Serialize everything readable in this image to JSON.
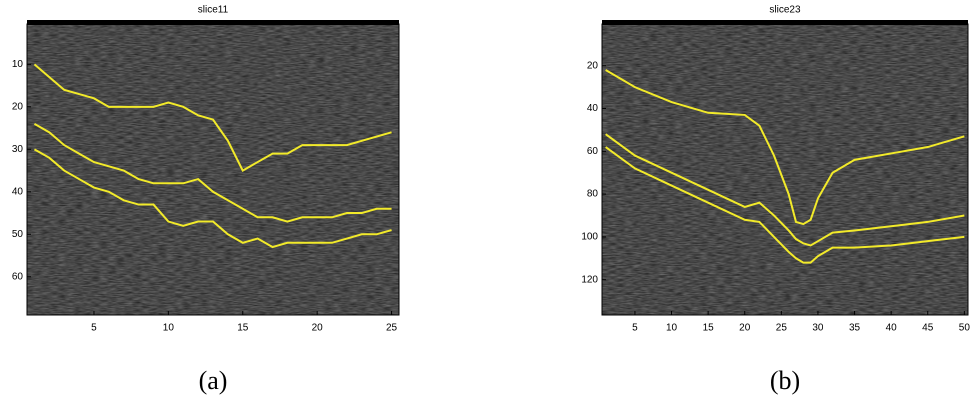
{
  "chart_data": [
    {
      "type": "line",
      "title": "slice11",
      "caption": "(a)",
      "y_reversed": true,
      "xlim": [
        0.5,
        25.5
      ],
      "ylim": [
        0.5,
        69
      ],
      "xticks": [
        5,
        10,
        15,
        20,
        25
      ],
      "yticks": [
        10,
        20,
        30,
        40,
        50,
        60
      ],
      "x": [
        1,
        2,
        3,
        4,
        5,
        6,
        7,
        8,
        9,
        10,
        11,
        12,
        13,
        14,
        15,
        16,
        17,
        18,
        19,
        20,
        21,
        22,
        23,
        24,
        25
      ],
      "series": [
        {
          "color": "#f2ea2a",
          "values": [
            10,
            13,
            16,
            17,
            18,
            20,
            20,
            20,
            20,
            19,
            20,
            22,
            23,
            28,
            35,
            33,
            31,
            31,
            29,
            29,
            29,
            29,
            28,
            27,
            26
          ]
        },
        {
          "color": "#f2ea2a",
          "values": [
            24,
            26,
            29,
            31,
            33,
            34,
            35,
            37,
            38,
            38,
            38,
            37,
            40,
            42,
            44,
            46,
            46,
            47,
            46,
            46,
            46,
            45,
            45,
            44,
            44
          ]
        },
        {
          "color": "#f2ea2a",
          "values": [
            30,
            32,
            35,
            37,
            39,
            40,
            42,
            43,
            43,
            47,
            48,
            47,
            47,
            50,
            52,
            51,
            53,
            52,
            52,
            52,
            52,
            51,
            50,
            50,
            49
          ]
        }
      ]
    },
    {
      "type": "line",
      "title": "slice23",
      "caption": "(b)",
      "y_reversed": true,
      "xlim": [
        0.5,
        50.5
      ],
      "ylim": [
        0.5,
        136.5
      ],
      "xticks": [
        5,
        10,
        15,
        20,
        25,
        30,
        35,
        40,
        45,
        50
      ],
      "yticks": [
        20,
        40,
        60,
        80,
        100,
        120
      ],
      "x": [
        1,
        5,
        10,
        15,
        20,
        22,
        24,
        26,
        27,
        28,
        29,
        30,
        32,
        35,
        40,
        45,
        50
      ],
      "series": [
        {
          "color": "#f2ea2a",
          "values": [
            22,
            30,
            37,
            42,
            43,
            48,
            62,
            80,
            93,
            94,
            92,
            82,
            70,
            64,
            61,
            58,
            53
          ]
        },
        {
          "color": "#f2ea2a",
          "values": [
            52,
            62,
            70,
            78,
            86,
            84,
            90,
            97,
            101,
            103,
            104,
            102,
            98,
            97,
            95,
            93,
            90
          ]
        },
        {
          "color": "#f2ea2a",
          "values": [
            58,
            68,
            76,
            84,
            92,
            93,
            100,
            107,
            110,
            112,
            112,
            109,
            105,
            105,
            104,
            102,
            100
          ]
        }
      ]
    }
  ]
}
